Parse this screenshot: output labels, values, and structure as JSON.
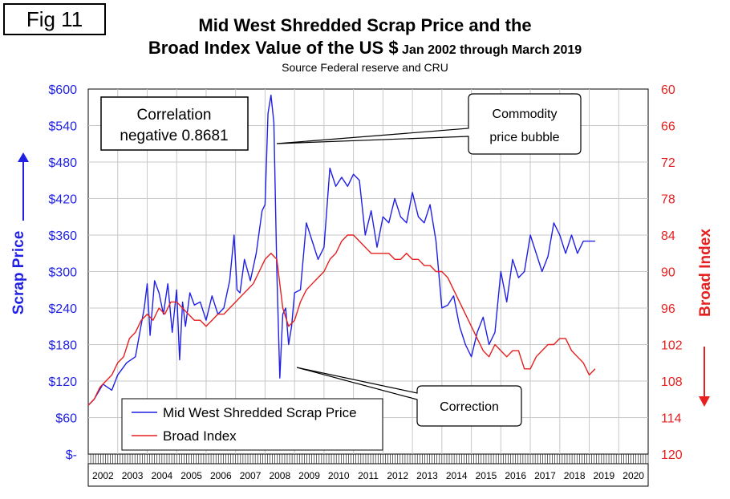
{
  "fig_label": "Fig 11",
  "title_line1": "Mid West Shredded Scrap Price and the",
  "title_line2_main": "Broad Index Value of the US $",
  "title_line2_suffix": "Jan 2002 through March 2019",
  "source": "Source Federal reserve and CRU",
  "annotations": {
    "correlation_line1": "Correlation",
    "correlation_line2": "negative 0.8681",
    "bubble_line1": "Commodity",
    "bubble_line2": "price bubble",
    "correction": "Correction"
  },
  "colors": {
    "scrap": "#1f1fe6",
    "broad": "#e61f1f",
    "left_axis": "#1f1fe6",
    "right_axis": "#e61f1f"
  },
  "chart_data": {
    "type": "line",
    "x_categories": [
      "2002",
      "2003",
      "2004",
      "2005",
      "2006",
      "2007",
      "2008",
      "2009",
      "2010",
      "2011",
      "2012",
      "2013",
      "2014",
      "2015",
      "2016",
      "2017",
      "2018",
      "2019",
      "2020"
    ],
    "y_left": {
      "label": "Scrap Price",
      "range": [
        0,
        600
      ],
      "ticks": [
        "$-",
        "$60",
        "$120",
        "$180",
        "$240",
        "$300",
        "$360",
        "$420",
        "$480",
        "$540",
        "$600"
      ]
    },
    "y_right": {
      "label": "Broad Index",
      "range": [
        60,
        120
      ],
      "inverted": true,
      "ticks": [
        "60",
        "66",
        "72",
        "78",
        "84",
        "90",
        "96",
        "102",
        "108",
        "114",
        "120"
      ]
    },
    "legend": [
      "Mid West Shredded Scrap Price",
      "Broad Index"
    ],
    "grid": true,
    "series": [
      {
        "name": "Mid West Shredded Scrap Price",
        "axis": "left",
        "x": [
          2002.0,
          2002.2,
          2002.5,
          2002.8,
          2003.0,
          2003.3,
          2003.6,
          2003.9,
          2004.0,
          2004.1,
          2004.25,
          2004.4,
          2004.55,
          2004.7,
          2004.85,
          2005.0,
          2005.1,
          2005.2,
          2005.3,
          2005.45,
          2005.6,
          2005.8,
          2006.0,
          2006.2,
          2006.4,
          2006.6,
          2006.8,
          2006.95,
          2007.05,
          2007.15,
          2007.3,
          2007.5,
          2007.7,
          2007.9,
          2008.0,
          2008.1,
          2008.2,
          2008.3,
          2008.4,
          2008.5,
          2008.6,
          2008.7,
          2008.8,
          2008.9,
          2009.0,
          2009.2,
          2009.4,
          2009.6,
          2009.8,
          2010.0,
          2010.2,
          2010.4,
          2010.6,
          2010.8,
          2011.0,
          2011.2,
          2011.4,
          2011.6,
          2011.8,
          2012.0,
          2012.2,
          2012.4,
          2012.6,
          2012.8,
          2013.0,
          2013.2,
          2013.4,
          2013.6,
          2013.8,
          2014.0,
          2014.2,
          2014.4,
          2014.6,
          2014.8,
          2015.0,
          2015.2,
          2015.4,
          2015.6,
          2015.8,
          2016.0,
          2016.2,
          2016.4,
          2016.6,
          2016.8,
          2017.0,
          2017.2,
          2017.4,
          2017.6,
          2017.8,
          2018.0,
          2018.2,
          2018.4,
          2018.6,
          2018.8,
          2019.0,
          2019.2
        ],
        "y": [
          80,
          90,
          115,
          105,
          130,
          150,
          160,
          240,
          280,
          195,
          285,
          265,
          230,
          280,
          200,
          270,
          155,
          250,
          210,
          265,
          245,
          250,
          220,
          260,
          230,
          240,
          285,
          360,
          270,
          265,
          320,
          285,
          330,
          400,
          410,
          560,
          590,
          545,
          300,
          125,
          230,
          240,
          180,
          210,
          265,
          270,
          380,
          350,
          320,
          340,
          470,
          440,
          455,
          440,
          460,
          450,
          360,
          400,
          340,
          390,
          380,
          420,
          390,
          380,
          430,
          390,
          380,
          410,
          350,
          240,
          245,
          260,
          210,
          180,
          160,
          200,
          225,
          180,
          200,
          300,
          250,
          320,
          290,
          300,
          360,
          330,
          300,
          325,
          380,
          360,
          330,
          360,
          330,
          350,
          350,
          350
        ]
      },
      {
        "name": "Broad Index",
        "axis": "right",
        "x": [
          2002.0,
          2002.2,
          2002.4,
          2002.6,
          2002.8,
          2003.0,
          2003.2,
          2003.4,
          2003.6,
          2003.8,
          2004.0,
          2004.2,
          2004.4,
          2004.6,
          2004.8,
          2005.0,
          2005.2,
          2005.4,
          2005.6,
          2005.8,
          2006.0,
          2006.2,
          2006.4,
          2006.6,
          2006.8,
          2007.0,
          2007.2,
          2007.4,
          2007.6,
          2007.8,
          2008.0,
          2008.2,
          2008.4,
          2008.6,
          2008.8,
          2009.0,
          2009.2,
          2009.4,
          2009.6,
          2009.8,
          2010.0,
          2010.2,
          2010.4,
          2010.6,
          2010.8,
          2011.0,
          2011.2,
          2011.4,
          2011.6,
          2011.8,
          2012.0,
          2012.2,
          2012.4,
          2012.6,
          2012.8,
          2013.0,
          2013.2,
          2013.4,
          2013.6,
          2013.8,
          2014.0,
          2014.2,
          2014.4,
          2014.6,
          2014.8,
          2015.0,
          2015.2,
          2015.4,
          2015.6,
          2015.8,
          2016.0,
          2016.2,
          2016.4,
          2016.6,
          2016.8,
          2017.0,
          2017.2,
          2017.4,
          2017.6,
          2017.8,
          2018.0,
          2018.2,
          2018.4,
          2018.6,
          2018.8,
          2019.0,
          2019.2
        ],
        "y": [
          112,
          111,
          109,
          108,
          107,
          105,
          104,
          101,
          100,
          98,
          97,
          98,
          96,
          97,
          95,
          95,
          96,
          97,
          98,
          98,
          99,
          98,
          97,
          97,
          96,
          95,
          94,
          93,
          92,
          90,
          88,
          87,
          88,
          96,
          99,
          98,
          95,
          93,
          92,
          91,
          90,
          88,
          87,
          85,
          84,
          84,
          85,
          86,
          87,
          87,
          87,
          87,
          88,
          88,
          87,
          88,
          88,
          89,
          89,
          90,
          90,
          91,
          93,
          95,
          97,
          99,
          101,
          103,
          104,
          102,
          103,
          104,
          103,
          103,
          106,
          106,
          104,
          103,
          102,
          102,
          101,
          101,
          103,
          104,
          105,
          107,
          106
        ]
      }
    ]
  }
}
